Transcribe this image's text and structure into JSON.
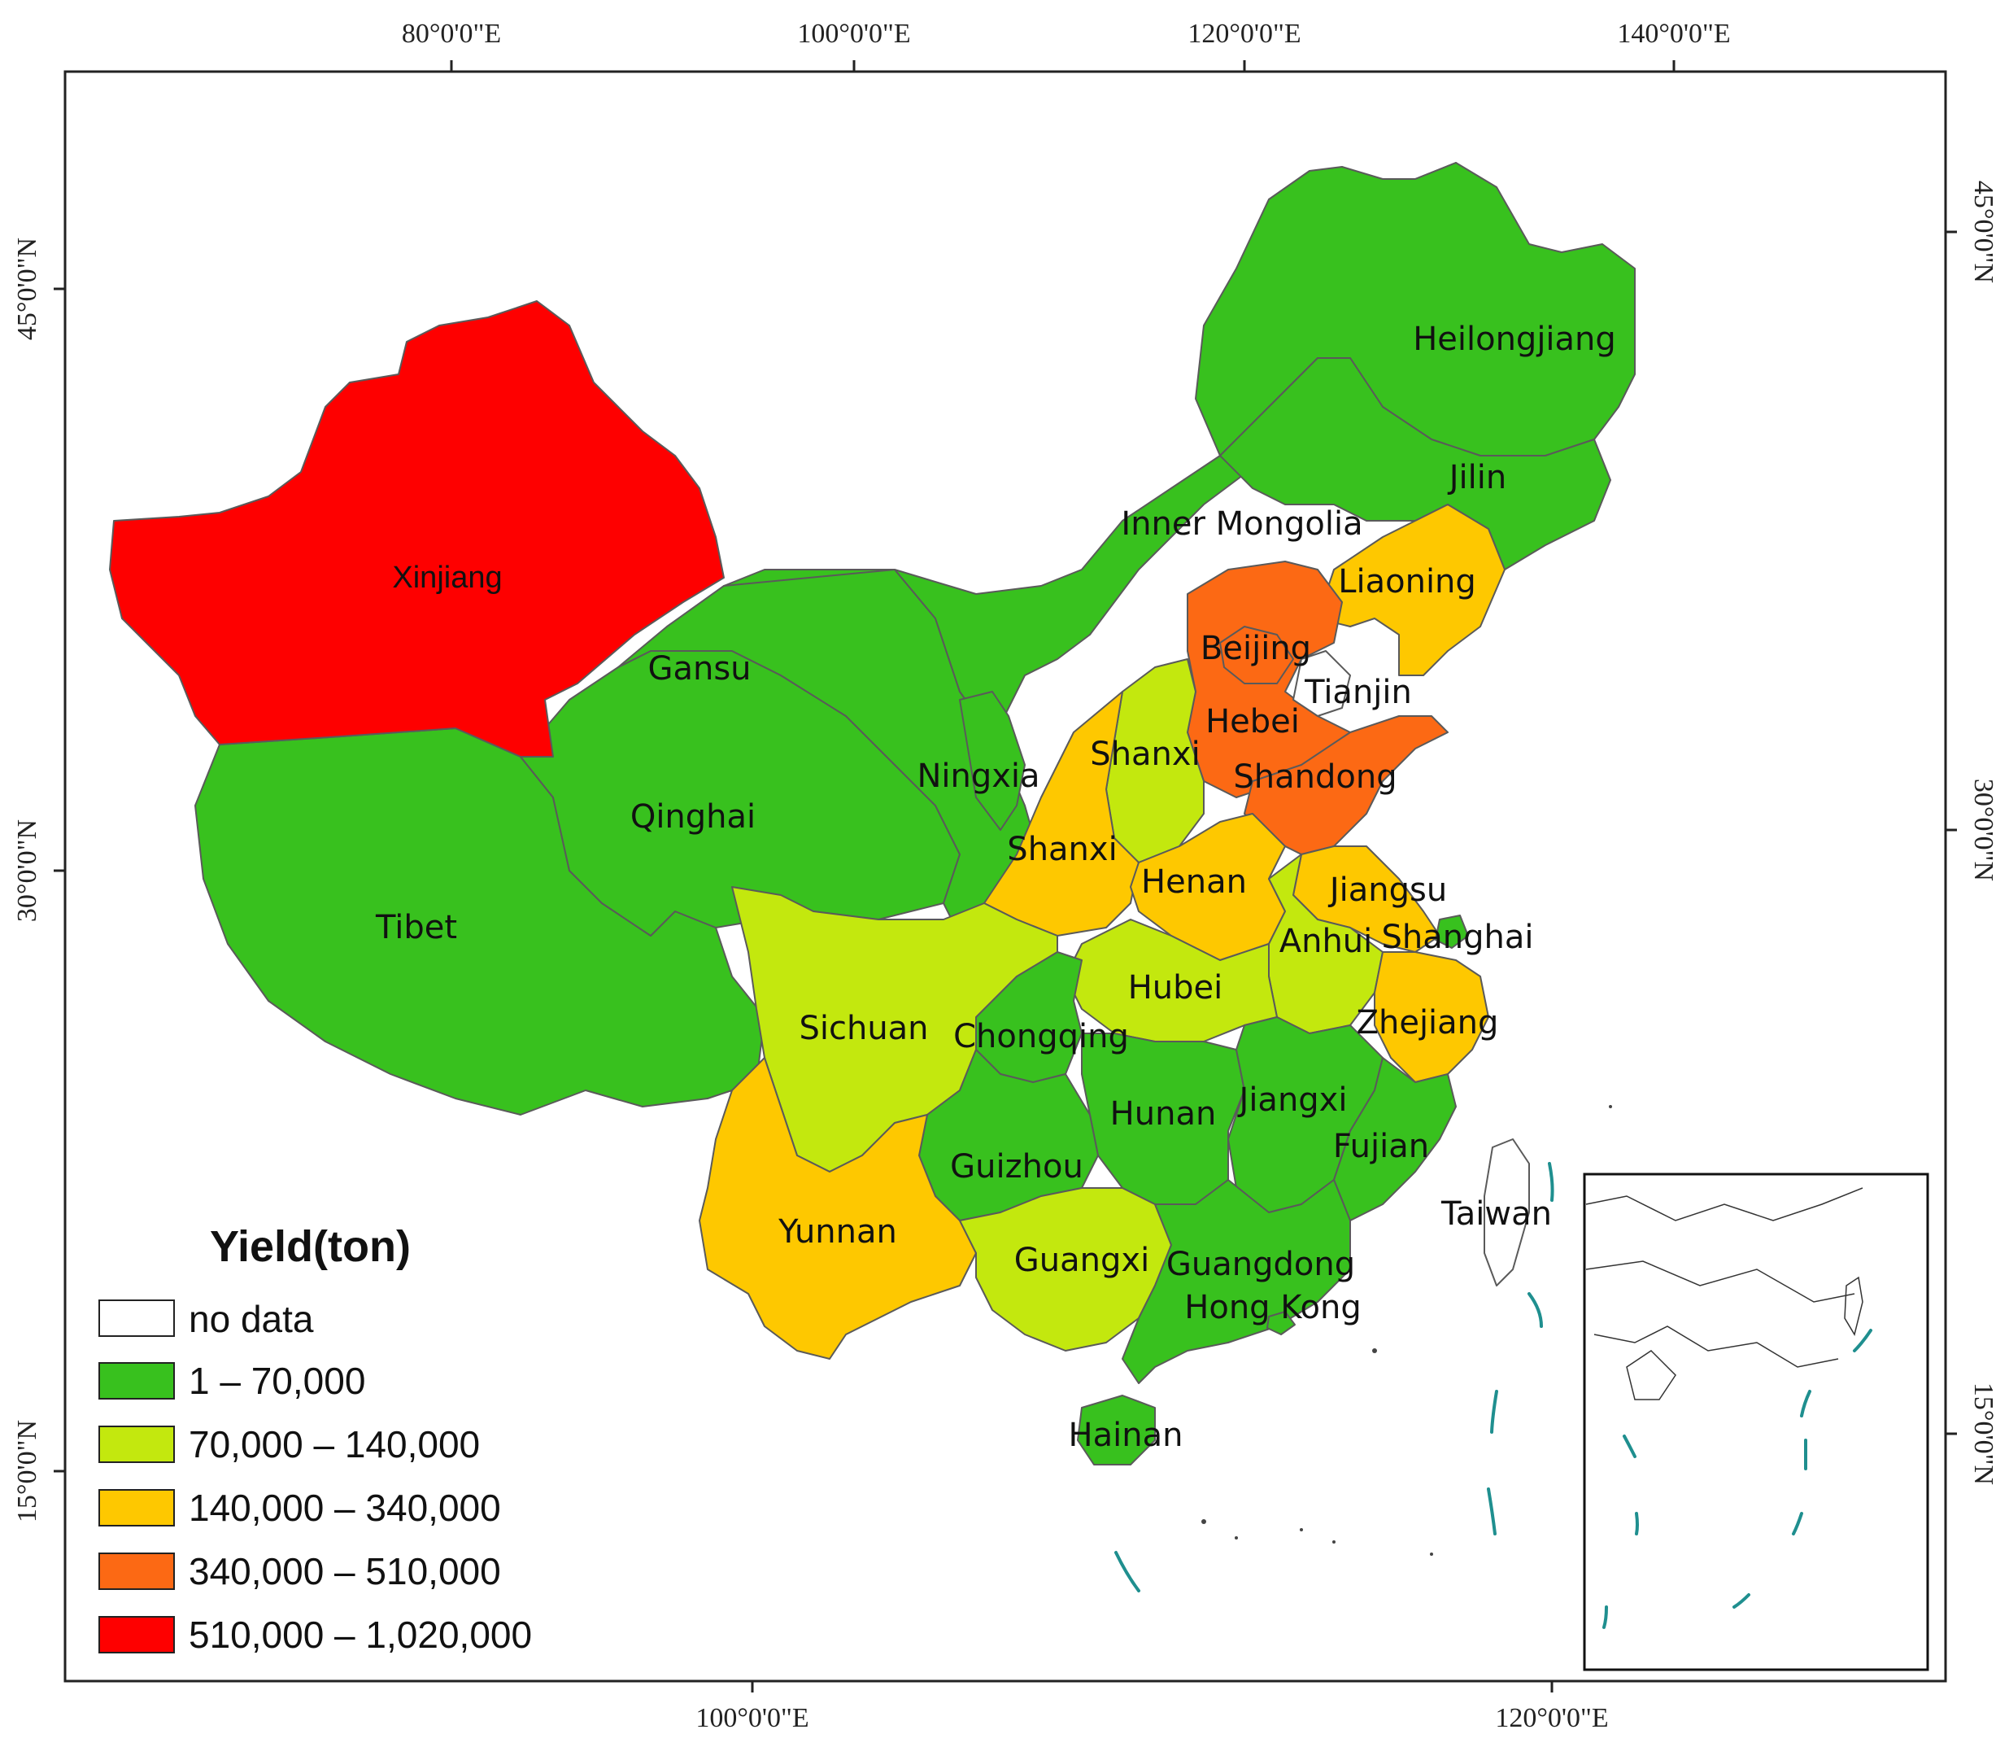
{
  "coords": {
    "top": [
      "80°0'0\"E",
      "100°0'0\"E",
      "120°0'0\"E",
      "140°0'0\"E"
    ],
    "bottom": [
      "100°0'0\"E",
      "120°0'0\"E"
    ],
    "left": [
      "45°0'0\"N",
      "30°0'0\"N",
      "15°0'0\"N"
    ],
    "right": [
      "45°0'0\"N",
      "30°0'0\"N",
      "15°0'0\"N"
    ]
  },
  "legend": {
    "title": "Yield(ton)",
    "classes": [
      {
        "label": "no data",
        "color": "#ffffff"
      },
      {
        "label": "1 – 70,000",
        "color": "#38c11e"
      },
      {
        "label": "70,000 – 140,000",
        "color": "#c3e80e"
      },
      {
        "label": "140,000 – 340,000",
        "color": "#fec800"
      },
      {
        "label": "340,000 – 510,000",
        "color": "#fc6914"
      },
      {
        "label": "510,000 – 1,020,000",
        "color": "#fe0000"
      }
    ]
  },
  "provinces": {
    "xinjiang": {
      "label": "Xinjiang",
      "class": 5
    },
    "gansu": {
      "label": "Gansu",
      "class": 1
    },
    "qinghai": {
      "label": "Qinghai",
      "class": 1
    },
    "tibet": {
      "label": "Tibet",
      "class": 1
    },
    "inner_mongolia": {
      "label": "Inner Mongolia",
      "class": 1
    },
    "heilongjiang": {
      "label": "Heilongjiang",
      "class": 1
    },
    "jilin": {
      "label": "Jilin",
      "class": 1
    },
    "liaoning": {
      "label": "Liaoning",
      "class": 3
    },
    "beijing": {
      "label": "Beijing",
      "class": 4
    },
    "tianjin": {
      "label": "Tianjin",
      "class": 0
    },
    "hebei": {
      "label": "Hebei",
      "class": 4
    },
    "shandong": {
      "label": "Shandong",
      "class": 4
    },
    "shanxi": {
      "label": "Shanxi",
      "class": 2
    },
    "shaanxi": {
      "label": "Shanxi",
      "class": 3
    },
    "ningxia": {
      "label": "Ningxia",
      "class": 1
    },
    "henan": {
      "label": "Henan",
      "class": 3
    },
    "jiangsu": {
      "label": "Jiangsu",
      "class": 3
    },
    "anhui": {
      "label": "Anhui",
      "class": 2
    },
    "shanghai": {
      "label": "Shanghai",
      "class": 1
    },
    "hubei": {
      "label": "Hubei",
      "class": 2
    },
    "zhejiang": {
      "label": "Zhejiang",
      "class": 3
    },
    "sichuan": {
      "label": "Sichuan",
      "class": 2
    },
    "chongqing": {
      "label": "Chongqing",
      "class": 1
    },
    "hunan": {
      "label": "Hunan",
      "class": 1
    },
    "jiangxi": {
      "label": "Jiangxi",
      "class": 1
    },
    "fujian": {
      "label": "Fujian",
      "class": 1
    },
    "guizhou": {
      "label": "Guizhou",
      "class": 1
    },
    "yunnan": {
      "label": "Yunnan",
      "class": 3
    },
    "guangxi": {
      "label": "Guangxi",
      "class": 2
    },
    "guangdong": {
      "label": "Guangdong",
      "class": 1
    },
    "hong_kong": {
      "label": "Hong Kong",
      "class": 1
    },
    "hainan": {
      "label": "Hainan",
      "class": 1
    },
    "taiwan": {
      "label": "Taiwan",
      "class": 0
    }
  }
}
